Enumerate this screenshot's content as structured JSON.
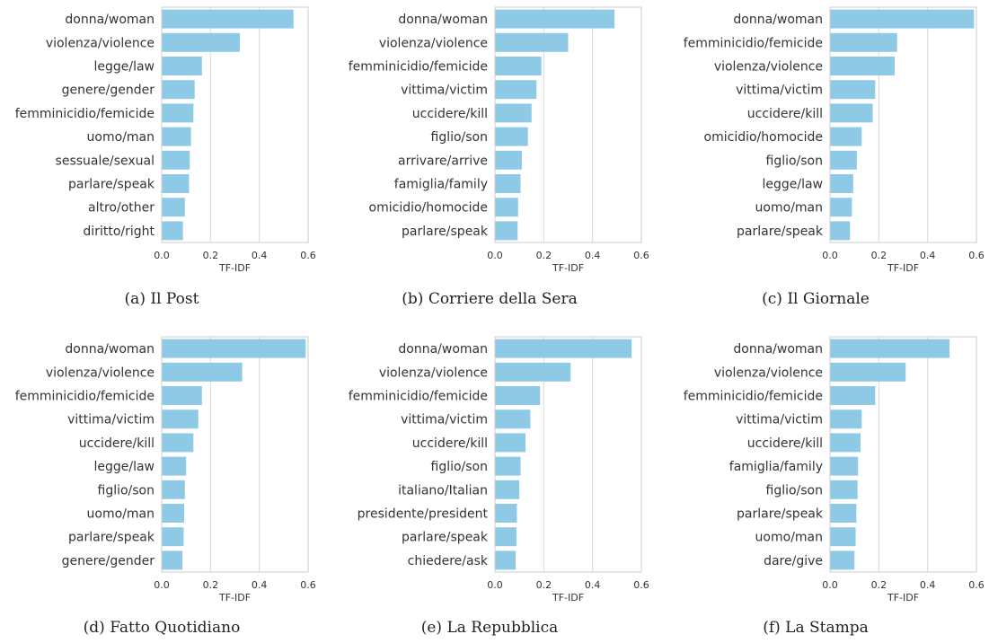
{
  "colors": {
    "bar": "#8ecae6",
    "grid": "#d9d9d9"
  },
  "chart_data": [
    {
      "type": "bar",
      "orientation": "horizontal",
      "caption": "(a) Il Post",
      "xlabel": "TF-IDF",
      "xlim": [
        0,
        0.6
      ],
      "xticks": [
        "0.0",
        "0.2",
        "0.4",
        "0.6"
      ],
      "grid": true,
      "categories": [
        "donna/woman",
        "violenza/violence",
        "legge/law",
        "genere/gender",
        "femminicidio/femicide",
        "uomo/man",
        "sessuale/sexual",
        "parlare/speak",
        "altro/other",
        "diritto/right"
      ],
      "values": [
        0.54,
        0.32,
        0.165,
        0.135,
        0.13,
        0.12,
        0.115,
        0.112,
        0.095,
        0.087
      ]
    },
    {
      "type": "bar",
      "orientation": "horizontal",
      "caption": "(b) Corriere della Sera",
      "xlabel": "TF-IDF",
      "xlim": [
        0,
        0.6
      ],
      "xticks": [
        "0.0",
        "0.2",
        "0.4",
        "0.6"
      ],
      "grid": true,
      "categories": [
        "donna/woman",
        "violenza/violence",
        "femminicidio/femicide",
        "vittima/victim",
        "uccidere/kill",
        "figlio/son",
        "arrivare/arrive",
        "famiglia/family",
        "omicidio/homocide",
        "parlare/speak"
      ],
      "values": [
        0.49,
        0.3,
        0.19,
        0.17,
        0.15,
        0.135,
        0.11,
        0.105,
        0.095,
        0.093
      ]
    },
    {
      "type": "bar",
      "orientation": "horizontal",
      "caption": "(c) Il Giornale",
      "xlabel": "TF-IDF",
      "xlim": [
        0,
        0.6
      ],
      "xticks": [
        "0.0",
        "0.2",
        "0.4",
        "0.6"
      ],
      "grid": true,
      "categories": [
        "donna/woman",
        "femminicidio/femicide",
        "violenza/violence",
        "vittima/victim",
        "uccidere/kill",
        "omicidio/homocide",
        "figlio/son",
        "legge/law",
        "uomo/man",
        "parlare/speak"
      ],
      "values": [
        0.59,
        0.275,
        0.265,
        0.185,
        0.175,
        0.13,
        0.11,
        0.095,
        0.09,
        0.082
      ]
    },
    {
      "type": "bar",
      "orientation": "horizontal",
      "caption": "(d) Fatto Quotidiano",
      "xlabel": "TF-IDF",
      "xlim": [
        0,
        0.6
      ],
      "xticks": [
        "0.0",
        "0.2",
        "0.4",
        "0.6"
      ],
      "grid": true,
      "categories": [
        "donna/woman",
        "violenza/violence",
        "femminicidio/femicide",
        "vittima/victim",
        "uccidere/kill",
        "legge/law",
        "figlio/son",
        "uomo/man",
        "parlare/speak",
        "genere/gender"
      ],
      "values": [
        0.59,
        0.33,
        0.165,
        0.15,
        0.13,
        0.1,
        0.095,
        0.092,
        0.09,
        0.085
      ]
    },
    {
      "type": "bar",
      "orientation": "horizontal",
      "caption": "(e) La Repubblica",
      "xlabel": "TF-IDF",
      "xlim": [
        0,
        0.6
      ],
      "xticks": [
        "0.0",
        "0.2",
        "0.4",
        "0.6"
      ],
      "grid": true,
      "categories": [
        "donna/woman",
        "violenza/violence",
        "femminicidio/femicide",
        "vittima/victim",
        "uccidere/kill",
        "figlio/son",
        "italiano/Italian",
        "presidente/president",
        "parlare/speak",
        "chiedere/ask"
      ],
      "values": [
        0.56,
        0.31,
        0.185,
        0.145,
        0.125,
        0.105,
        0.1,
        0.09,
        0.088,
        0.085
      ]
    },
    {
      "type": "bar",
      "orientation": "horizontal",
      "caption": "(f) La Stampa",
      "xlabel": "TF-IDF",
      "xlim": [
        0,
        0.6
      ],
      "xticks": [
        "0.0",
        "0.2",
        "0.4",
        "0.6"
      ],
      "grid": true,
      "categories": [
        "donna/woman",
        "violenza/violence",
        "femminicidio/femicide",
        "vittima/victim",
        "uccidere/kill",
        "famiglia/family",
        "figlio/son",
        "parlare/speak",
        "uomo/man",
        "dare/give"
      ],
      "values": [
        0.49,
        0.31,
        0.185,
        0.13,
        0.125,
        0.115,
        0.113,
        0.108,
        0.105,
        0.1
      ]
    }
  ]
}
